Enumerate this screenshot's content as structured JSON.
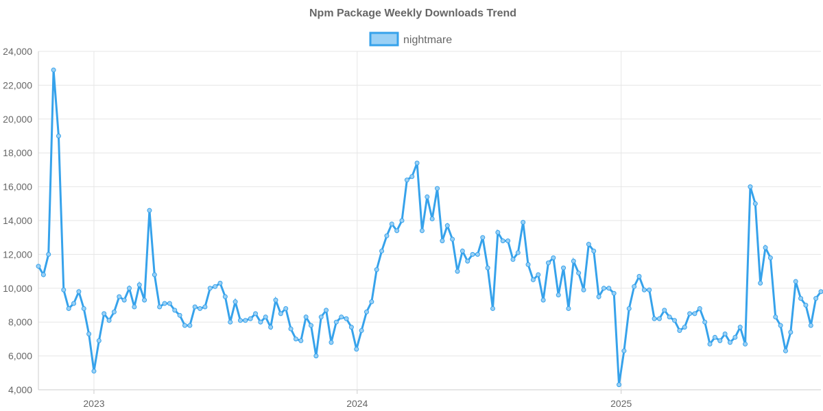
{
  "chart_data": {
    "type": "line",
    "title": "Npm Package Weekly Downloads Trend",
    "xlabel": "",
    "ylabel": "",
    "ylim": [
      4000,
      24000
    ],
    "yticks": [
      4000,
      6000,
      8000,
      10000,
      12000,
      14000,
      16000,
      18000,
      20000,
      22000,
      24000
    ],
    "ytick_labels": [
      "4,000",
      "6,000",
      "8,000",
      "10,000",
      "12,000",
      "14,000",
      "16,000",
      "18,000",
      "20,000",
      "22,000",
      "24,000"
    ],
    "xlim": [
      "2022-10-16",
      "2025-10-05"
    ],
    "xticks": [
      "2023-01-01",
      "2024-01-01",
      "2025-01-01"
    ],
    "xtick_labels": [
      "2023",
      "2024",
      "2025"
    ],
    "grid": true,
    "legend_position": "top-center",
    "colors": {
      "line": "#36a2eb",
      "fill": "#9ad0f5"
    },
    "series": [
      {
        "name": "nightmare",
        "x": [
          "2022-10-16",
          "2022-10-23",
          "2022-10-30",
          "2022-11-06",
          "2022-11-13",
          "2022-11-20",
          "2022-11-27",
          "2022-12-04",
          "2022-12-11",
          "2022-12-18",
          "2022-12-25",
          "2023-01-01",
          "2023-01-08",
          "2023-01-15",
          "2023-01-22",
          "2023-01-29",
          "2023-02-05",
          "2023-02-12",
          "2023-02-19",
          "2023-02-26",
          "2023-03-05",
          "2023-03-12",
          "2023-03-19",
          "2023-03-26",
          "2023-04-02",
          "2023-04-09",
          "2023-04-16",
          "2023-04-23",
          "2023-04-30",
          "2023-05-07",
          "2023-05-14",
          "2023-05-21",
          "2023-05-28",
          "2023-06-04",
          "2023-06-11",
          "2023-06-18",
          "2023-06-25",
          "2023-07-02",
          "2023-07-09",
          "2023-07-16",
          "2023-07-23",
          "2023-07-30",
          "2023-08-06",
          "2023-08-13",
          "2023-08-20",
          "2023-08-27",
          "2023-09-03",
          "2023-09-10",
          "2023-09-17",
          "2023-09-24",
          "2023-10-01",
          "2023-10-08",
          "2023-10-15",
          "2023-10-22",
          "2023-10-29",
          "2023-11-05",
          "2023-11-12",
          "2023-11-19",
          "2023-11-26",
          "2023-12-03",
          "2023-12-10",
          "2023-12-17",
          "2023-12-24",
          "2023-12-31",
          "2024-01-07",
          "2024-01-14",
          "2024-01-21",
          "2024-01-28",
          "2024-02-04",
          "2024-02-11",
          "2024-02-18",
          "2024-02-25",
          "2024-03-03",
          "2024-03-10",
          "2024-03-17",
          "2024-03-24",
          "2024-03-31",
          "2024-04-07",
          "2024-04-14",
          "2024-04-21",
          "2024-04-28",
          "2024-05-05",
          "2024-05-12",
          "2024-05-19",
          "2024-05-26",
          "2024-06-02",
          "2024-06-09",
          "2024-06-16",
          "2024-06-23",
          "2024-06-30",
          "2024-07-07",
          "2024-07-14",
          "2024-07-21",
          "2024-07-28",
          "2024-08-04",
          "2024-08-11",
          "2024-08-18",
          "2024-08-25",
          "2024-09-01",
          "2024-09-08",
          "2024-09-15",
          "2024-09-22",
          "2024-09-29",
          "2024-10-06",
          "2024-10-13",
          "2024-10-20",
          "2024-10-27",
          "2024-11-03",
          "2024-11-10",
          "2024-11-17",
          "2024-11-24",
          "2024-12-01",
          "2024-12-08",
          "2024-12-15",
          "2024-12-22",
          "2024-12-29",
          "2025-01-05",
          "2025-01-12",
          "2025-01-19",
          "2025-01-26",
          "2025-02-02",
          "2025-02-09",
          "2025-02-16",
          "2025-02-23",
          "2025-03-02",
          "2025-03-09",
          "2025-03-16",
          "2025-03-23",
          "2025-03-30",
          "2025-04-06",
          "2025-04-13",
          "2025-04-20",
          "2025-04-27",
          "2025-05-04",
          "2025-05-11",
          "2025-05-18",
          "2025-05-25",
          "2025-06-01",
          "2025-06-08",
          "2025-06-15",
          "2025-06-22",
          "2025-06-29",
          "2025-07-06",
          "2025-07-13",
          "2025-07-20",
          "2025-07-27",
          "2025-08-03",
          "2025-08-10",
          "2025-08-17",
          "2025-08-24",
          "2025-08-31",
          "2025-09-07",
          "2025-09-14",
          "2025-09-21",
          "2025-09-28",
          "2025-10-05"
        ],
        "values": [
          11300,
          10800,
          12000,
          22900,
          19000,
          9900,
          8800,
          9100,
          9800,
          8800,
          7300,
          5100,
          6900,
          8500,
          8100,
          8600,
          9500,
          9300,
          10000,
          8900,
          10200,
          9300,
          14600,
          10800,
          8900,
          9100,
          9100,
          8700,
          8400,
          7800,
          7800,
          8900,
          8800,
          8900,
          10000,
          10100,
          10300,
          9500,
          8000,
          9200,
          8100,
          8100,
          8200,
          8500,
          8000,
          8300,
          7700,
          9300,
          8500,
          8800,
          7600,
          7000,
          6900,
          8300,
          7800,
          6000,
          8300,
          8700,
          6800,
          8000,
          8300,
          8200,
          7700,
          6400,
          7500,
          8600,
          9200,
          11100,
          12200,
          13100,
          13800,
          13400,
          14000,
          16400,
          16600,
          17400,
          13400,
          15400,
          14100,
          15900,
          12800,
          13700,
          12900,
          11000,
          12200,
          11600,
          12000,
          12000,
          13000,
          11200,
          8800,
          13300,
          12800,
          12800,
          11700,
          12100,
          13900,
          11400,
          10500,
          10800,
          9300,
          11500,
          11800,
          9600,
          11200,
          8800,
          11600,
          10900,
          9900,
          12600,
          12200,
          9500,
          10000,
          10000,
          9700,
          4300,
          6300,
          8800,
          10100,
          10700,
          9900,
          9900,
          8200,
          8200,
          8700,
          8300,
          8100,
          7500,
          7700,
          8500,
          8500,
          8800,
          8000,
          6700,
          7100,
          6900,
          7300,
          6800,
          7100,
          7700,
          6700,
          16000,
          15000,
          10300,
          12400,
          11800,
          8300,
          7800,
          6300,
          7400,
          10400,
          9400,
          9000,
          7800,
          9400,
          9800
        ]
      }
    ]
  }
}
